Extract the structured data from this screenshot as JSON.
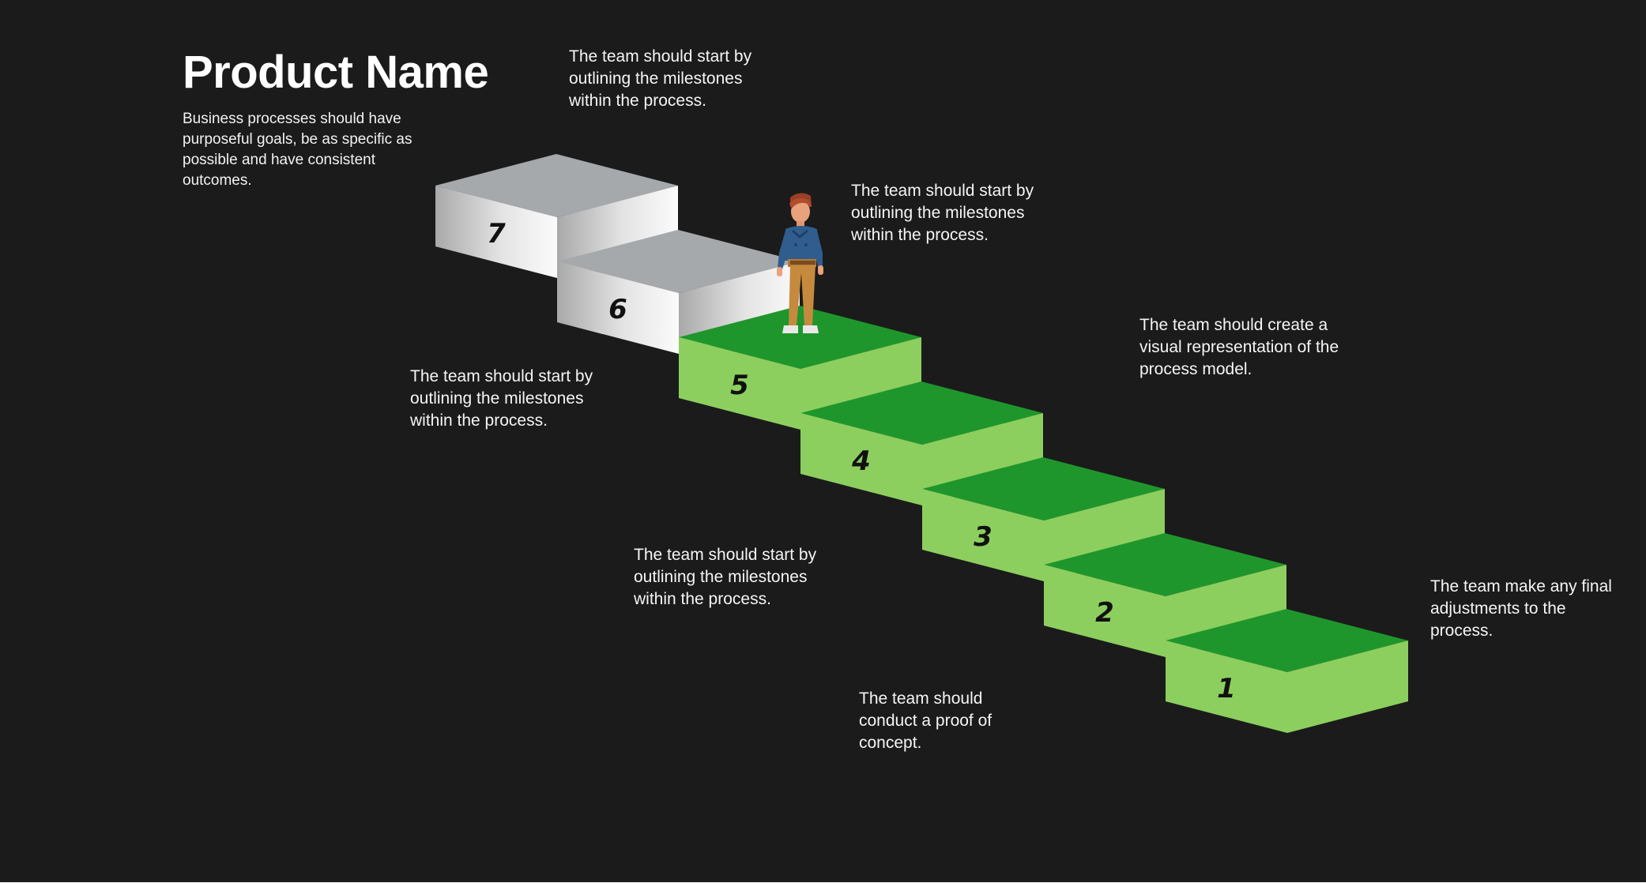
{
  "header": {
    "title": "Product Name",
    "subtitle": "Business processes should have purposeful goals, be as specific as possible and have consistent outcomes."
  },
  "steps": [
    {
      "number": "1",
      "status": "done"
    },
    {
      "number": "2",
      "status": "done"
    },
    {
      "number": "3",
      "status": "done"
    },
    {
      "number": "4",
      "status": "done"
    },
    {
      "number": "5",
      "status": "current"
    },
    {
      "number": "6",
      "status": "upcoming"
    },
    {
      "number": "7",
      "status": "upcoming"
    }
  ],
  "notes": {
    "top": "The team should start by outlining the milestones within the process.",
    "upper_right": "The team should start by outlining the milestones within the process.",
    "right": "The team should create a visual representation of the process model.",
    "left": "The team should start by outlining the milestones within the process.",
    "middle": "The team should start by outlining the milestones within the process.",
    "bottom": "The team should conduct a proof of concept.",
    "far_right": "The team make any final adjustments to the process."
  },
  "colors": {
    "background": "#1b1b1b",
    "done_top": "#1f962c",
    "done_side": "#8ccf5e",
    "upcoming_top": "#a5a9ab",
    "upcoming_side_light": "#fbfbfb",
    "upcoming_side_dark": "#a9a9a9",
    "text": "#ffffff"
  },
  "figure": {
    "icon": "standing-man-icon"
  }
}
